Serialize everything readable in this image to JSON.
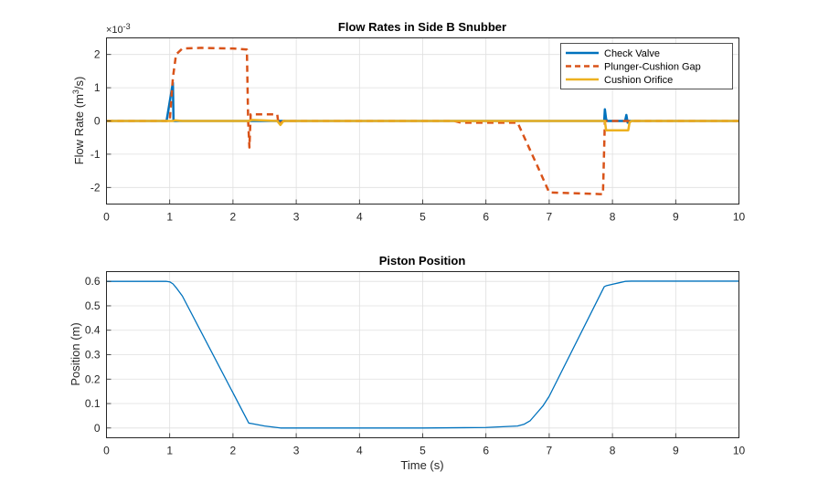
{
  "colors": {
    "check_valve": "#0072BD",
    "plunger_gap": "#D95319",
    "cushion_orifice": "#EDB120",
    "grid": "#dfdfdf",
    "axis": "#262626"
  },
  "chart_data": [
    {
      "type": "line",
      "title": "Flow Rates in Side B Snubber",
      "ylabel_main": "Flow  Rate  (m",
      "ylabel_sup": "3",
      "ylabel_tail": "/s)",
      "exponent_base": "×10",
      "exponent_power": "-3",
      "xlim": [
        0,
        10
      ],
      "ylim": [
        -2.5,
        2.5
      ],
      "xticks": [
        "0",
        "1",
        "2",
        "3",
        "4",
        "5",
        "6",
        "7",
        "8",
        "9",
        "10"
      ],
      "yticks": [
        "2",
        "1",
        "0",
        "-1",
        "-2"
      ],
      "ytick_values": [
        2,
        1,
        0,
        -1,
        -2
      ],
      "grid": true,
      "legend_position": "top-right",
      "series": [
        {
          "name": "Check Valve",
          "style": "solid",
          "x": [
            0,
            0.95,
            1.05,
            1.06,
            1.1,
            7.87,
            7.88,
            7.9,
            7.92,
            7.94,
            8.0,
            8.1,
            8.2,
            8.22,
            8.24,
            8.26,
            8.3,
            10
          ],
          "y": [
            0,
            0,
            1.15,
            0,
            0,
            0,
            0.35,
            0.05,
            0,
            0,
            0,
            0,
            0,
            0.18,
            -0.05,
            0,
            0,
            0
          ]
        },
        {
          "name": "Plunger-Cushion Gap",
          "style": "dashed",
          "x": [
            0,
            1.0,
            1.05,
            1.1,
            1.2,
            1.5,
            2.0,
            2.22,
            2.24,
            2.26,
            2.28,
            2.3,
            2.6,
            2.7,
            2.72,
            2.8,
            3.0,
            5.5,
            5.6,
            6.5,
            6.8,
            7.0,
            7.8,
            7.85,
            7.86,
            7.88,
            10
          ],
          "y": [
            0,
            0,
            1.3,
            2.0,
            2.18,
            2.2,
            2.18,
            2.15,
            0,
            -0.8,
            0.2,
            0.2,
            0.2,
            0.2,
            -0.1,
            0,
            0,
            0,
            -0.05,
            -0.05,
            -1.3,
            -2.15,
            -2.2,
            -2.2,
            -1.5,
            0,
            0
          ]
        },
        {
          "name": "Cushion Orifice",
          "style": "solid",
          "x": [
            0,
            1.05,
            1.08,
            1.2,
            2.25,
            2.3,
            2.7,
            2.75,
            2.8,
            7.88,
            7.9,
            8.25,
            8.27,
            8.3,
            10
          ],
          "y": [
            0,
            0,
            0.02,
            0,
            0,
            0.03,
            0,
            -0.12,
            0,
            0,
            -0.28,
            -0.28,
            -0.05,
            0,
            0
          ]
        }
      ]
    },
    {
      "type": "line",
      "title": "Piston Position",
      "ylabel": "Position (m)",
      "xlabel": "Time (s)",
      "xlim": [
        0,
        10
      ],
      "ylim": [
        -0.04,
        0.64
      ],
      "xticks": [
        "0",
        "1",
        "2",
        "3",
        "4",
        "5",
        "6",
        "7",
        "8",
        "9",
        "10"
      ],
      "yticks": [
        "0.6",
        "0.5",
        "0.4",
        "0.3",
        "0.2",
        "0.1",
        "0"
      ],
      "ytick_values": [
        0.6,
        0.5,
        0.4,
        0.3,
        0.2,
        0.1,
        0
      ],
      "grid": true,
      "series": [
        {
          "name": "Position",
          "style": "solid",
          "x": [
            0,
            0.95,
            1.0,
            1.05,
            1.1,
            1.2,
            2.25,
            2.3,
            2.5,
            2.75,
            3.0,
            5.0,
            6.0,
            6.5,
            6.6,
            6.7,
            6.8,
            6.9,
            7.0,
            7.87,
            7.9,
            8.0,
            8.1,
            8.2,
            8.3,
            10
          ],
          "y": [
            0.6,
            0.6,
            0.598,
            0.59,
            0.575,
            0.54,
            0.02,
            0.018,
            0.008,
            0.0,
            0.0,
            0.0,
            0.002,
            0.008,
            0.015,
            0.03,
            0.06,
            0.09,
            0.13,
            0.578,
            0.582,
            0.588,
            0.594,
            0.6,
            0.601,
            0.601
          ]
        }
      ]
    }
  ]
}
